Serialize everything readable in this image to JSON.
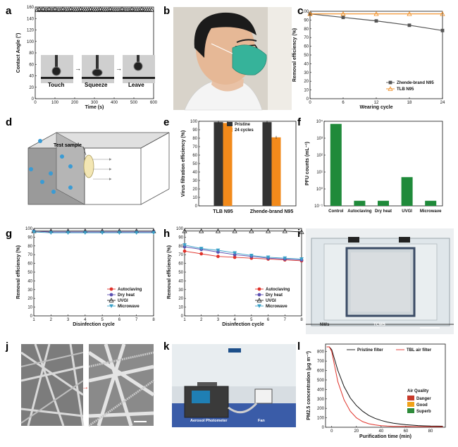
{
  "panel_labels": {
    "a": "a",
    "b": "b",
    "c": "c",
    "d": "d",
    "e": "e",
    "f": "f",
    "g": "g",
    "h": "h",
    "i": "i",
    "j": "j",
    "k": "k",
    "l": "l"
  },
  "panel_a": {
    "inset_labels": [
      "Touch",
      "Squeeze",
      "Leave"
    ]
  },
  "panel_d": {
    "label": "Test sample"
  },
  "panel_i": {
    "labels": [
      "NWs",
      "TCMS"
    ]
  },
  "panel_k": {
    "labels": [
      "Aerosol Photometer",
      "Fan"
    ]
  },
  "chart_data": [
    {
      "id": "a",
      "type": "scatter",
      "xlabel": "Time (s)",
      "ylabel": "Contact Angle (°)",
      "xlim": [
        0,
        600
      ],
      "ylim": [
        0,
        160
      ],
      "xticks": [
        0,
        100,
        200,
        300,
        400,
        500,
        600
      ],
      "yticks": [
        0,
        20,
        40,
        60,
        80,
        100,
        120,
        140,
        160
      ],
      "series": [
        {
          "x": [
            10,
            20,
            30,
            40,
            50,
            60,
            70,
            80,
            90,
            100,
            110,
            120,
            130,
            140,
            150,
            160,
            170,
            180,
            190,
            200,
            210,
            220,
            230,
            240,
            250,
            260,
            270,
            280,
            290,
            300,
            310,
            320,
            330,
            340,
            350,
            360,
            370,
            380,
            390,
            400,
            410,
            420,
            430,
            440,
            450,
            460,
            470,
            480,
            490,
            500,
            510,
            520,
            530,
            540,
            550,
            560,
            570,
            580,
            590
          ],
          "y": [
            155,
            156,
            155,
            156,
            155,
            155,
            156,
            155,
            155,
            156,
            155,
            155,
            155,
            156,
            155,
            155,
            155,
            156,
            155,
            155,
            155,
            155,
            156,
            155,
            155,
            155,
            155,
            156,
            155,
            155,
            155,
            155,
            156,
            155,
            155,
            155,
            155,
            156,
            155,
            155,
            155,
            155,
            155,
            156,
            155,
            155,
            155,
            155,
            156,
            155,
            155,
            155,
            155,
            156,
            155,
            155,
            155,
            155,
            155
          ]
        }
      ]
    },
    {
      "id": "c",
      "type": "line",
      "xlabel": "Wearing cycle",
      "ylabel": "Removal efficiency (%)",
      "xlim": [
        0,
        24
      ],
      "ylim": [
        0,
        100
      ],
      "xticks": [
        0,
        6,
        12,
        18,
        24
      ],
      "yticks": [
        0,
        10,
        20,
        30,
        40,
        50,
        60,
        70,
        80,
        90,
        100
      ],
      "legend_position": "bottom-right",
      "series": [
        {
          "name": "Zhende-brand N95",
          "x": [
            0,
            6,
            12,
            18,
            24
          ],
          "y": [
            97,
            93,
            89,
            84,
            78
          ],
          "color": "#555555",
          "marker": "square"
        },
        {
          "name": "TLB N95",
          "x": [
            0,
            6,
            12,
            18,
            24
          ],
          "y": [
            97,
            97,
            97,
            97,
            97
          ],
          "color": "#f08a1c",
          "marker": "triangle"
        }
      ]
    },
    {
      "id": "e",
      "type": "bar",
      "ylabel": "Virus filtration efficiency (%)",
      "categories": [
        "TLB N95",
        "Zhende-brand N95"
      ],
      "ylim": [
        0,
        100
      ],
      "yticks": [
        0,
        10,
        20,
        30,
        40,
        50,
        60,
        70,
        80,
        90,
        100
      ],
      "legend_position": "top-center",
      "series": [
        {
          "name": "Pristine",
          "values": [
            99,
            99
          ],
          "color": "#333333"
        },
        {
          "name": "24 cycles",
          "values": [
            98,
            81
          ],
          "color": "#f28a1b"
        }
      ]
    },
    {
      "id": "f",
      "type": "bar",
      "yscale": "log",
      "ylabel": "PFU counts (mL⁻¹)",
      "categories": [
        "Control",
        "Autoclaving",
        "Dry heat",
        "UVGI",
        "Microwave"
      ],
      "values": [
        7000,
        0.2,
        0.2,
        5,
        0.2
      ],
      "ylim": [
        0.1,
        10000
      ],
      "yticks": [
        "10⁻¹",
        "10⁰",
        "10¹",
        "10²",
        "10³",
        "10⁴"
      ],
      "color": "#1f8a3a"
    },
    {
      "id": "g",
      "type": "line",
      "xlabel": "Disinfection cycle",
      "ylabel": "Removal efficiency (%)",
      "xlim": [
        1,
        8
      ],
      "ylim": [
        0,
        100
      ],
      "xticks": [
        1,
        2,
        3,
        4,
        5,
        6,
        7,
        8
      ],
      "yticks": [
        0,
        10,
        20,
        30,
        40,
        50,
        60,
        70,
        80,
        90,
        100
      ],
      "legend_position": "bottom-right",
      "series": [
        {
          "name": "Autoclaving",
          "x": [
            1,
            2,
            3,
            4,
            5,
            6,
            7,
            8
          ],
          "y": [
            97,
            96,
            96,
            96,
            96,
            96,
            96,
            96
          ],
          "color": "#e0322a",
          "marker": "circle"
        },
        {
          "name": "Dry heat",
          "x": [
            1,
            2,
            3,
            4,
            5,
            6,
            7,
            8
          ],
          "y": [
            97,
            96,
            96,
            96,
            96,
            96,
            96,
            96
          ],
          "color": "#5b4fb0",
          "marker": "circle"
        },
        {
          "name": "UVGI",
          "x": [
            1,
            2,
            3,
            4,
            5,
            6,
            7,
            8
          ],
          "y": [
            97,
            97,
            97,
            97,
            97,
            97,
            97,
            97
          ],
          "color": "#222222",
          "marker": "triangle"
        },
        {
          "name": "Microwave",
          "x": [
            1,
            2,
            3,
            4,
            5,
            6,
            7,
            8
          ],
          "y": [
            96,
            95,
            95,
            95,
            95,
            95,
            95,
            95
          ],
          "color": "#3aa0c8",
          "marker": "triangle-down"
        }
      ]
    },
    {
      "id": "h",
      "type": "line",
      "xlabel": "Disinfection cycle",
      "ylabel": "Removal efficiency (%)",
      "xlim": [
        1,
        8
      ],
      "ylim": [
        0,
        100
      ],
      "xticks": [
        1,
        2,
        3,
        4,
        5,
        6,
        7,
        8
      ],
      "yticks": [
        0,
        10,
        20,
        30,
        40,
        50,
        60,
        70,
        80,
        90,
        100
      ],
      "legend_position": "bottom-right",
      "series": [
        {
          "name": "Autoclaving",
          "x": [
            1,
            2,
            3,
            4,
            5,
            6,
            7,
            8
          ],
          "y": [
            74,
            71,
            68,
            67,
            66,
            65,
            64,
            63
          ],
          "color": "#e0322a",
          "marker": "circle"
        },
        {
          "name": "Dry heat",
          "x": [
            1,
            2,
            3,
            4,
            5,
            6,
            7,
            8
          ],
          "y": [
            79,
            76,
            73,
            70,
            68,
            66,
            65,
            64
          ],
          "color": "#5b4fb0",
          "marker": "circle"
        },
        {
          "name": "UVGI",
          "x": [
            1,
            2,
            3,
            4,
            5,
            6,
            7,
            8
          ],
          "y": [
            97,
            97,
            97,
            97,
            97,
            97,
            97,
            96
          ],
          "color": "#222222",
          "marker": "triangle"
        },
        {
          "name": "Microwave",
          "x": [
            1,
            2,
            3,
            4,
            5,
            6,
            7,
            8
          ],
          "y": [
            81,
            77,
            75,
            72,
            69,
            67,
            66,
            65
          ],
          "color": "#3aa0c8",
          "marker": "triangle-down"
        }
      ]
    },
    {
      "id": "l",
      "type": "line",
      "xlabel": "Purification time (min)",
      "ylabel": "PM2.5 concentration (μg m⁻³)",
      "xlim": [
        -5,
        92
      ],
      "ylim": [
        0,
        880
      ],
      "xticks": [
        0,
        20,
        40,
        60,
        80
      ],
      "yticks": [
        0,
        100,
        200,
        300,
        400,
        500,
        600,
        700,
        800
      ],
      "legend_position": "top",
      "air_quality_title": "Air Quality",
      "air_quality": [
        {
          "name": "Danger",
          "color": "#c83a2a"
        },
        {
          "name": "Good",
          "color": "#f0a21a"
        },
        {
          "name": "Superb",
          "color": "#2e8b3a"
        }
      ],
      "series": [
        {
          "name": "Pristine filter",
          "x": [
            -4,
            -2,
            0,
            5,
            10,
            15,
            20,
            25,
            30,
            35,
            40,
            45,
            50,
            55,
            60,
            65,
            70,
            75,
            80,
            85,
            90
          ],
          "y": [
            850,
            850,
            820,
            600,
            430,
            310,
            230,
            170,
            125,
            95,
            72,
            55,
            43,
            34,
            27,
            22,
            18,
            15,
            13,
            12,
            11
          ],
          "color": "#111111"
        },
        {
          "name": "TBL air filter",
          "x": [
            -4,
            -2,
            0,
            5,
            10,
            15,
            20,
            25,
            30,
            35,
            40,
            45,
            50,
            55,
            60,
            65,
            70,
            75,
            80,
            85,
            90
          ],
          "y": [
            850,
            850,
            800,
            480,
            290,
            170,
            100,
            60,
            37,
            25,
            17,
            13,
            10,
            9,
            8,
            7,
            7,
            6,
            6,
            6,
            6
          ],
          "color": "#e0322a"
        }
      ]
    }
  ]
}
